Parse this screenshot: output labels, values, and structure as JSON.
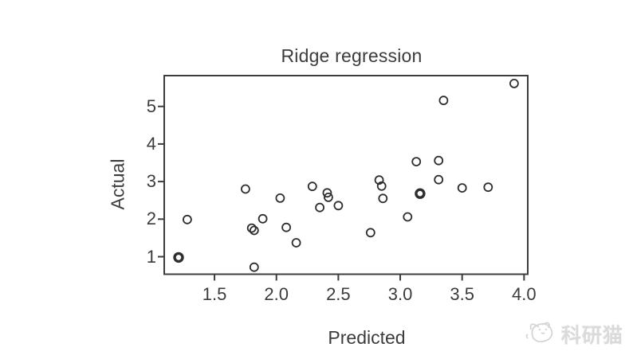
{
  "figure": {
    "title": "Ridge regression",
    "xlabel": "Predicted",
    "ylabel": "Actual"
  },
  "watermark": {
    "text": "科研猫",
    "icon": "cat-logo-icon",
    "color": "#dadada"
  },
  "colors": {
    "axis": "#3c3c3c",
    "marker_stroke": "#2e2e2e",
    "background": "#ffffff",
    "watermark": "#dadada"
  },
  "chart_data": {
    "type": "scatter",
    "title": "Ridge regression",
    "xlabel": "Predicted",
    "ylabel": "Actual",
    "marker": "open-circle",
    "grid": false,
    "legend": null,
    "xlim": [
      1.094,
      4.03
    ],
    "ylim": [
      0.534,
      5.82
    ],
    "x_ticks": [
      {
        "value": 1.5,
        "label": "1.5"
      },
      {
        "value": 2.0,
        "label": "2.0"
      },
      {
        "value": 2.5,
        "label": "2.5"
      },
      {
        "value": 3.0,
        "label": "3.0"
      },
      {
        "value": 3.5,
        "label": "3.5"
      },
      {
        "value": 4.0,
        "label": "4.0"
      }
    ],
    "y_ticks": [
      {
        "value": 1,
        "label": "1"
      },
      {
        "value": 2,
        "label": "2"
      },
      {
        "value": 3,
        "label": "3"
      },
      {
        "value": 4,
        "label": "4"
      },
      {
        "value": 5,
        "label": "5"
      }
    ],
    "points": [
      {
        "x": 1.21,
        "y": 0.98,
        "bold": true
      },
      {
        "x": 1.28,
        "y": 1.99,
        "bold": false
      },
      {
        "x": 1.75,
        "y": 2.8,
        "bold": false
      },
      {
        "x": 1.8,
        "y": 1.76,
        "bold": false
      },
      {
        "x": 1.82,
        "y": 1.7,
        "bold": false
      },
      {
        "x": 1.82,
        "y": 0.72,
        "bold": false
      },
      {
        "x": 1.89,
        "y": 2.01,
        "bold": false
      },
      {
        "x": 2.03,
        "y": 2.56,
        "bold": false
      },
      {
        "x": 2.08,
        "y": 1.78,
        "bold": false
      },
      {
        "x": 2.16,
        "y": 1.37,
        "bold": false
      },
      {
        "x": 2.29,
        "y": 2.87,
        "bold": false
      },
      {
        "x": 2.35,
        "y": 2.31,
        "bold": false
      },
      {
        "x": 2.41,
        "y": 2.7,
        "bold": false
      },
      {
        "x": 2.42,
        "y": 2.58,
        "bold": false
      },
      {
        "x": 2.5,
        "y": 2.36,
        "bold": false
      },
      {
        "x": 2.76,
        "y": 1.64,
        "bold": false
      },
      {
        "x": 2.83,
        "y": 3.04,
        "bold": false
      },
      {
        "x": 2.85,
        "y": 2.88,
        "bold": false
      },
      {
        "x": 2.86,
        "y": 2.55,
        "bold": false
      },
      {
        "x": 3.06,
        "y": 2.06,
        "bold": false
      },
      {
        "x": 3.13,
        "y": 3.53,
        "bold": false
      },
      {
        "x": 3.16,
        "y": 2.68,
        "bold": true
      },
      {
        "x": 3.31,
        "y": 3.56,
        "bold": false
      },
      {
        "x": 3.31,
        "y": 3.05,
        "bold": false
      },
      {
        "x": 3.35,
        "y": 5.16,
        "bold": false
      },
      {
        "x": 3.5,
        "y": 2.83,
        "bold": false
      },
      {
        "x": 3.71,
        "y": 2.85,
        "bold": false
      },
      {
        "x": 3.92,
        "y": 5.61,
        "bold": false
      }
    ]
  }
}
